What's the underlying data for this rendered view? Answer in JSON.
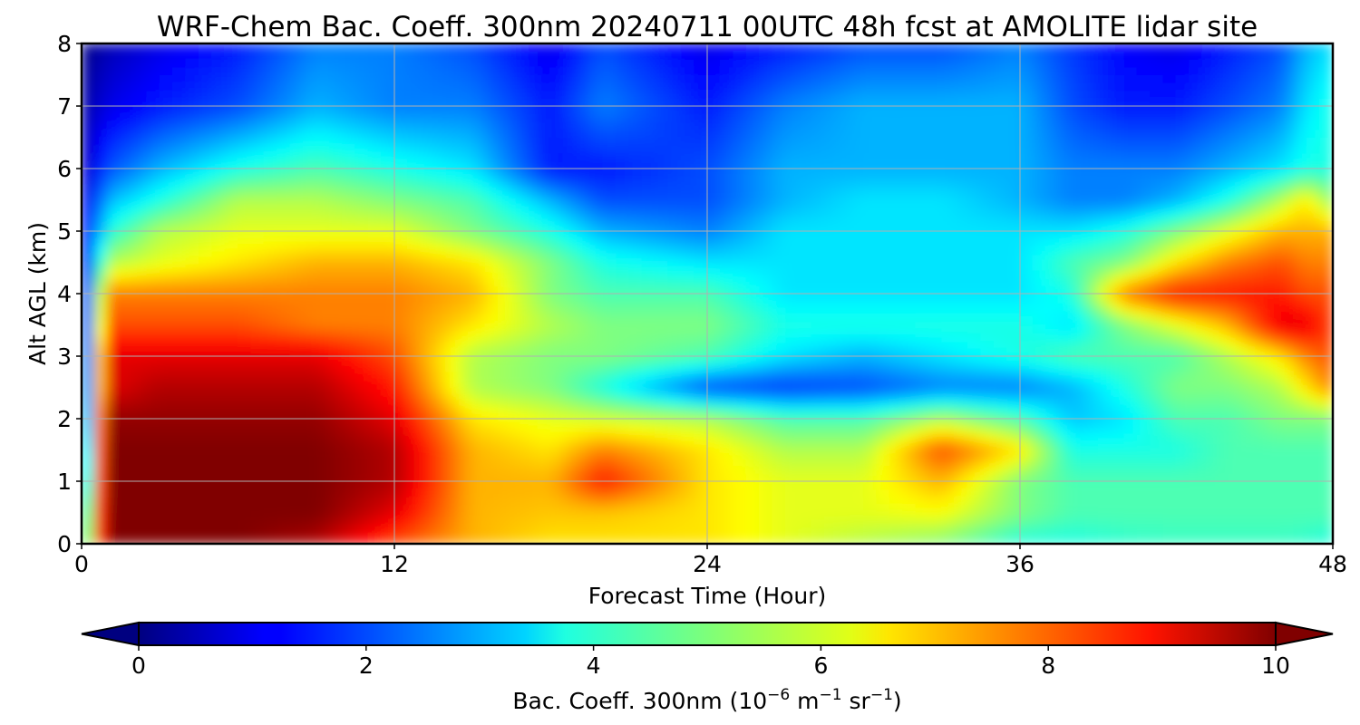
{
  "chart_data": {
    "type": "heatmap",
    "title": "WRF-Chem Bac. Coeff. 300nm  20240711 00UTC 48h fcst at AMOLITE lidar site",
    "xlabel": "Forecast Time (Hour)",
    "ylabel": "Alt AGL (km)",
    "xlim": [
      0,
      48
    ],
    "ylim": [
      0,
      8
    ],
    "x_ticks": [
      "0",
      "12",
      "24",
      "36",
      "48"
    ],
    "y_ticks": [
      "0",
      "1",
      "2",
      "3",
      "4",
      "5",
      "6",
      "7",
      "8"
    ],
    "grid": true,
    "colormap": "jet",
    "colorbar": {
      "orientation": "horizontal",
      "range": [
        0,
        10
      ],
      "extend": "both",
      "ticks": [
        "0",
        "2",
        "4",
        "6",
        "8",
        "10"
      ],
      "label_main": "Bac. Coeff. 300nm  (10",
      "label_exp1": "−6",
      "label_mid": " m",
      "label_exp2": "−1",
      "label_end": " sr",
      "label_exp3": "−1",
      "label_close": ")"
    },
    "x": [
      0,
      1,
      3,
      6,
      9,
      12,
      15,
      18,
      20,
      24,
      27,
      30,
      33,
      36,
      38,
      40,
      42,
      44,
      46,
      47,
      48
    ],
    "y": [
      0,
      0.5,
      1,
      1.5,
      2,
      2.5,
      3,
      3.5,
      4,
      4.5,
      5,
      5.5,
      6,
      7,
      8
    ],
    "values": [
      [
        3.5,
        10.0,
        10.0,
        10.0,
        9.5,
        8.0,
        7.0,
        6.5,
        6.5,
        6.5,
        6.0,
        5.5,
        5.0,
        4.0,
        4.0,
        4.2,
        4.3,
        4.3,
        4.3,
        4.2,
        4.0
      ],
      [
        3.0,
        10.0,
        10.0,
        10.0,
        10.0,
        9.0,
        7.0,
        6.8,
        6.8,
        6.5,
        6.0,
        6.0,
        6.2,
        5.0,
        4.5,
        4.5,
        4.5,
        4.5,
        4.5,
        4.5,
        4.5
      ],
      [
        2.0,
        10.0,
        10.0,
        10.0,
        10.0,
        9.5,
        7.0,
        7.0,
        8.5,
        6.5,
        6.0,
        6.0,
        7.0,
        5.0,
        4.5,
        4.5,
        4.5,
        4.5,
        4.5,
        4.5,
        4.5
      ],
      [
        1.5,
        10.0,
        10.0,
        10.0,
        10.0,
        9.5,
        7.0,
        6.5,
        7.5,
        6.5,
        5.5,
        5.5,
        8.0,
        6.5,
        4.0,
        4.0,
        4.0,
        4.5,
        4.5,
        4.5,
        4.5
      ],
      [
        1.0,
        9.8,
        9.8,
        9.8,
        9.8,
        9.0,
        6.5,
        6.0,
        5.8,
        5.5,
        4.5,
        4.5,
        5.5,
        4.5,
        3.2,
        3.5,
        4.5,
        4.5,
        5.0,
        5.0,
        5.0
      ],
      [
        0.8,
        9.0,
        9.5,
        9.5,
        9.5,
        8.5,
        5.5,
        5.0,
        4.0,
        2.0,
        1.8,
        2.0,
        2.5,
        2.5,
        3.0,
        4.0,
        5.0,
        5.0,
        5.5,
        6.5,
        7.5
      ],
      [
        0.6,
        9.0,
        9.0,
        9.0,
        9.0,
        8.0,
        5.5,
        5.0,
        5.0,
        4.5,
        3.5,
        3.0,
        3.5,
        4.0,
        4.5,
        4.5,
        4.5,
        5.5,
        6.5,
        7.5,
        8.0
      ],
      [
        0.5,
        8.0,
        8.0,
        8.0,
        7.5,
        7.5,
        6.5,
        5.5,
        5.0,
        5.0,
        4.0,
        4.0,
        4.0,
        4.0,
        3.5,
        5.0,
        6.0,
        7.0,
        9.0,
        9.0,
        8.0
      ],
      [
        0.5,
        7.5,
        7.5,
        7.5,
        7.5,
        7.5,
        7.0,
        5.0,
        4.5,
        4.5,
        3.5,
        3.5,
        3.5,
        3.5,
        4.0,
        7.5,
        8.5,
        8.5,
        8.5,
        8.0,
        8.0
      ],
      [
        0.5,
        5.5,
        6.0,
        6.5,
        7.0,
        7.0,
        6.5,
        5.0,
        4.0,
        3.5,
        3.5,
        3.5,
        3.5,
        3.5,
        4.5,
        5.0,
        6.5,
        7.5,
        8.0,
        7.5,
        7.5
      ],
      [
        0.5,
        4.0,
        5.5,
        6.0,
        6.0,
        6.0,
        5.0,
        4.0,
        3.0,
        2.5,
        3.5,
        3.5,
        3.5,
        3.5,
        3.5,
        4.0,
        5.0,
        6.0,
        7.0,
        7.0,
        7.0
      ],
      [
        0.5,
        3.0,
        4.0,
        5.5,
        5.5,
        5.0,
        4.5,
        3.0,
        2.0,
        2.0,
        3.0,
        3.5,
        3.5,
        3.0,
        2.5,
        2.5,
        3.0,
        4.0,
        5.5,
        6.5,
        5.0
      ],
      [
        0.5,
        2.0,
        3.0,
        4.0,
        4.5,
        4.0,
        3.5,
        1.5,
        1.5,
        2.0,
        3.0,
        3.0,
        3.0,
        3.0,
        2.5,
        2.5,
        2.5,
        3.0,
        3.5,
        4.0,
        4.0
      ],
      [
        0.3,
        1.0,
        1.5,
        2.0,
        3.0,
        2.5,
        2.5,
        1.5,
        2.5,
        1.5,
        2.5,
        3.0,
        3.0,
        3.0,
        2.0,
        1.5,
        1.5,
        2.0,
        2.5,
        3.5,
        4.0
      ],
      [
        0.0,
        0.5,
        1.0,
        1.5,
        2.5,
        2.5,
        2.0,
        1.0,
        2.0,
        1.0,
        1.5,
        2.0,
        2.0,
        2.5,
        1.8,
        1.2,
        1.0,
        1.5,
        2.0,
        3.0,
        3.5
      ]
    ]
  }
}
